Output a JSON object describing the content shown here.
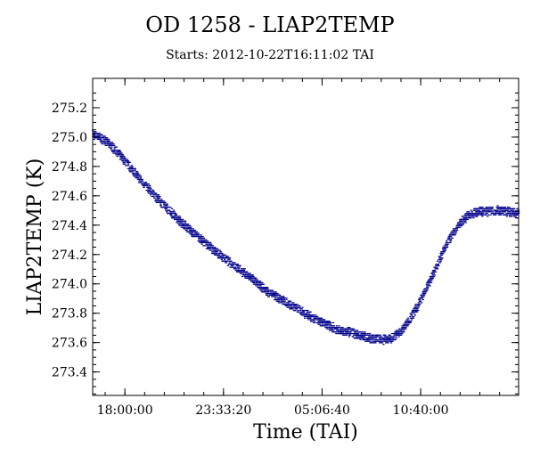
{
  "chart_data": {
    "type": "scatter",
    "title": "OD 1258 - LIAP2TEMP",
    "subtitle": "Starts: 2012-10-22T16:11:02 TAI",
    "xlabel": "Time (TAI)",
    "ylabel": "LIAP2TEMP (K)",
    "x_ticks": [
      "18:00:00",
      "23:33:20",
      "05:06:40",
      "10:40:00"
    ],
    "y_ticks": [
      "273.4",
      "273.6",
      "273.8",
      "274.0",
      "274.2",
      "274.4",
      "274.6",
      "274.8",
      "275.0",
      "275.2"
    ],
    "xlim": [
      "2012-10-22T16:11:02",
      "2012-10-23T16:11:02"
    ],
    "ylim": [
      273.24,
      275.4
    ],
    "grid": false,
    "marker_color": "#00008b",
    "series": [
      {
        "x": [
          "2012-10-22T16:11:02",
          "2012-10-22T17:00:00",
          "2012-10-22T18:00:00",
          "2012-10-22T19:00:00",
          "2012-10-22T20:00:00",
          "2012-10-22T21:00:00",
          "2012-10-22T22:00:00",
          "2012-10-22T23:00:00",
          "2012-10-23T00:00:00",
          "2012-10-23T01:00:00",
          "2012-10-23T02:00:00",
          "2012-10-23T03:00:00",
          "2012-10-23T04:00:00",
          "2012-10-23T05:00:00",
          "2012-10-23T06:00:00",
          "2012-10-23T07:00:00",
          "2012-10-23T07:45:00",
          "2012-10-23T08:30:00",
          "2012-10-23T09:00:00",
          "2012-10-23T09:30:00",
          "2012-10-23T10:00:00",
          "2012-10-23T10:30:00",
          "2012-10-23T11:00:00",
          "2012-10-23T11:30:00",
          "2012-10-23T12:00:00",
          "2012-10-23T12:30:00",
          "2012-10-23T13:00:00",
          "2012-10-23T13:30:00",
          "2012-10-23T14:00:00",
          "2012-10-23T15:00:00",
          "2012-10-23T16:11:02"
        ],
        "values": [
          275.02,
          274.97,
          274.84,
          274.69,
          274.56,
          274.44,
          274.33,
          274.23,
          274.14,
          274.05,
          273.95,
          273.88,
          273.81,
          273.74,
          273.69,
          273.66,
          273.63,
          273.62,
          273.63,
          273.67,
          273.75,
          273.85,
          273.97,
          274.1,
          274.24,
          274.35,
          274.43,
          274.48,
          274.49,
          274.5,
          274.48
        ]
      }
    ]
  }
}
